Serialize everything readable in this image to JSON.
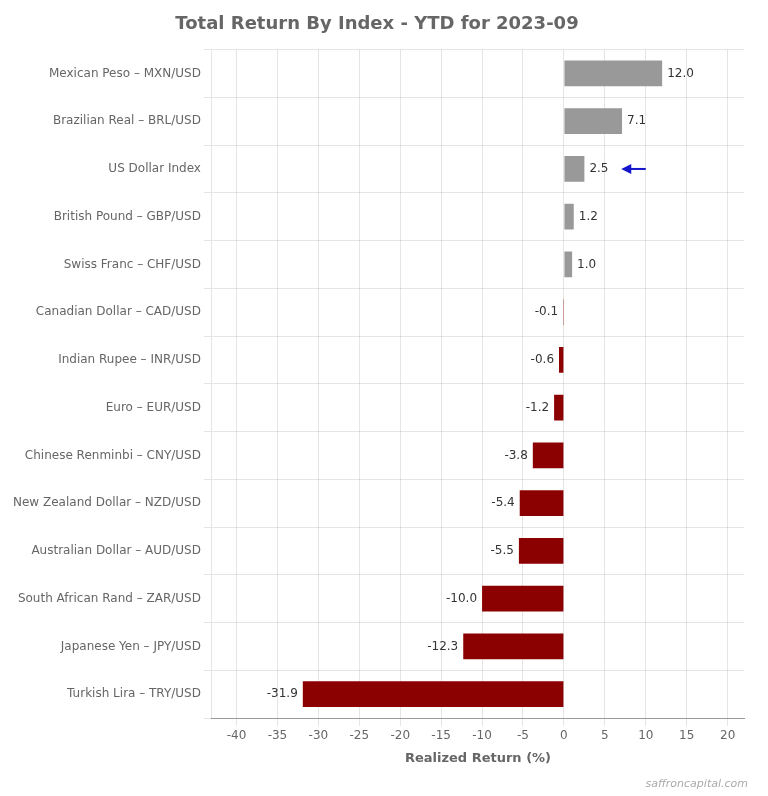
{
  "chart_data": {
    "type": "bar",
    "orientation": "horizontal",
    "title": "Total Return By Index - YTD for 2023-09",
    "xlabel": "Realized Return (%)",
    "categories": [
      "Turkish Lira – TRY/USD",
      "Japanese Yen – JPY/USD",
      "South African Rand – ZAR/USD",
      "Australian Dollar – AUD/USD",
      "New Zealand Dollar – NZD/USD",
      "Chinese Renminbi – CNY/USD",
      "Euro – EUR/USD",
      "Indian Rupee – INR/USD",
      "Canadian Dollar – CAD/USD",
      "Swiss Franc – CHF/USD",
      "British Pound – GBP/USD",
      "US Dollar Index",
      "Brazilian Real – BRL/USD",
      "Mexican Peso – MXN/USD"
    ],
    "values": [
      -31.9,
      -12.3,
      -10.0,
      -5.5,
      -5.4,
      -3.8,
      -1.2,
      -0.6,
      -0.1,
      1.0,
      1.2,
      2.5,
      7.1,
      12.0
    ],
    "value_labels": [
      "-31.9",
      "-12.3",
      "-10.0",
      "-5.5",
      "-5.4",
      "-3.8",
      "-1.2",
      "-0.6",
      "-0.1",
      "1.0",
      "1.2",
      "2.5",
      "7.1",
      "12.0"
    ],
    "data_labels": true,
    "colors": [
      "#8B0000",
      "#8B0000",
      "#8B0000",
      "#8B0000",
      "#8B0000",
      "#8B0000",
      "#8B0000",
      "#8B0000",
      "#8B0000",
      "#999999",
      "#999999",
      "#999999",
      "#999999",
      "#999999"
    ],
    "xlim": [
      -43,
      22
    ],
    "xticks": [
      -40,
      -35,
      -30,
      -25,
      -20,
      -15,
      -10,
      -5,
      0,
      5,
      10,
      15,
      20
    ],
    "grid": true,
    "annotations": [
      {
        "type": "arrow",
        "category": "US Dollar Index",
        "from": 10.0,
        "to": 7.0,
        "color": "#1515CC"
      },
      {
        "text": "saffroncapital.com"
      }
    ]
  }
}
